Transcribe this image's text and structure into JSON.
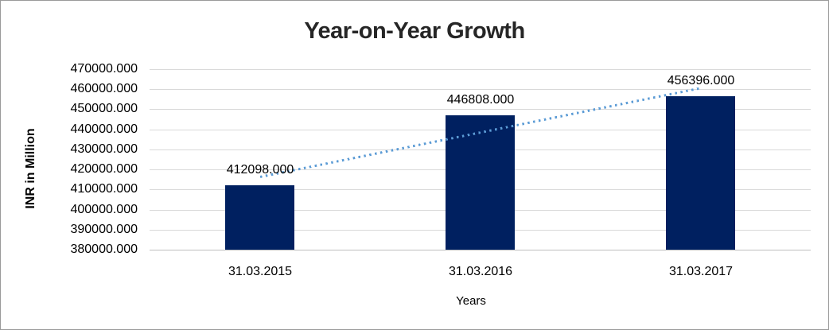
{
  "chart_data": {
    "type": "bar",
    "title": "Year-on-Year Growth",
    "xlabel": "Years",
    "ylabel": "INR in Million",
    "categories": [
      "31.03.2015",
      "31.03.2016",
      "31.03.2017"
    ],
    "values": [
      412098,
      446808,
      456396
    ],
    "data_labels": [
      "412098.000",
      "446808.000",
      "456396.000"
    ],
    "ylim": [
      380000,
      470000
    ],
    "ytick_step": 10000,
    "ytick_labels": [
      "470000.000",
      "460000.000",
      "450000.000",
      "440000.000",
      "430000.000",
      "420000.000",
      "410000.000",
      "400000.000",
      "390000.000",
      "380000.000"
    ],
    "grid": true,
    "legend_position": "none",
    "bar_color": "#002060",
    "trendline": {
      "type": "linear",
      "style": "dotted",
      "color": "#5b9bd5"
    },
    "gridline_color": "#d9d9d9",
    "axis_line_color": "#bfbfbf",
    "title_color": "#262626"
  }
}
